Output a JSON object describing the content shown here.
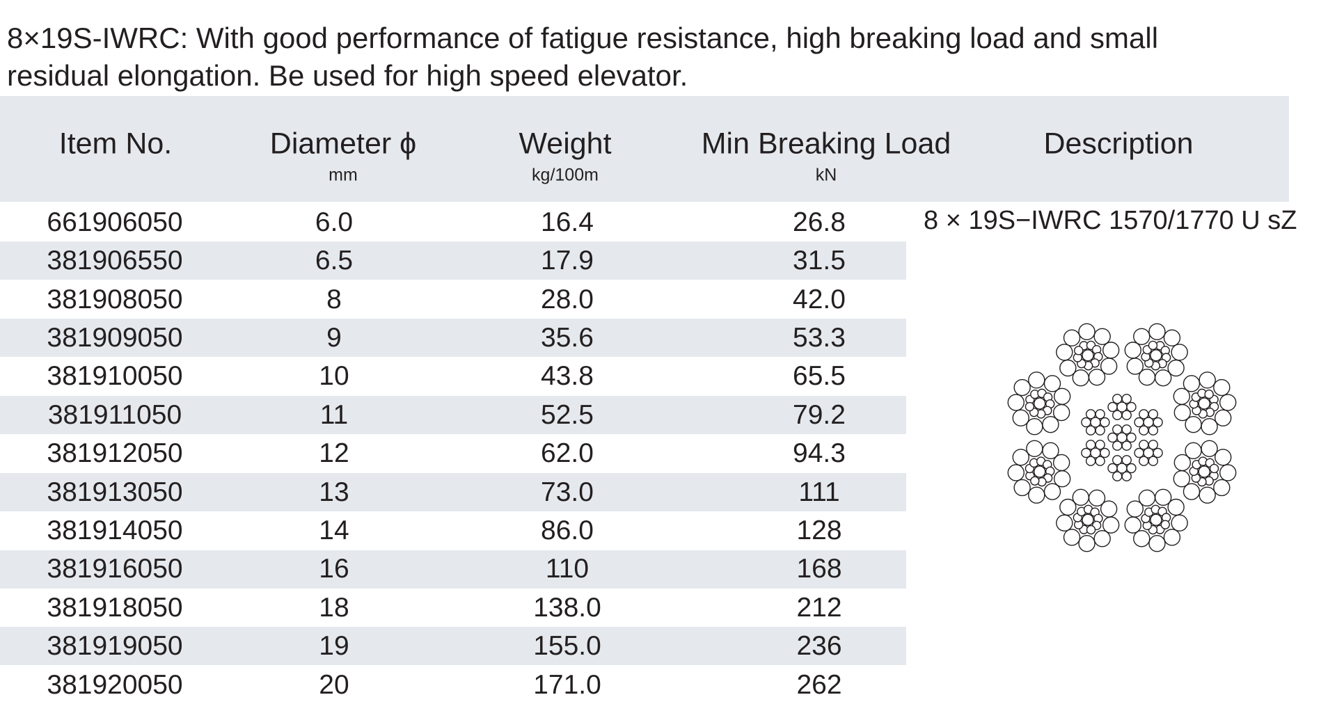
{
  "intro": [
    "8×19S-IWRC:  With good performance of fatigue resistance, high breaking load and small",
    "residual elongation. Be used for high speed elevator."
  ],
  "table": {
    "headers": [
      {
        "label": "Item No."
      },
      {
        "label": "Diameter ϕ",
        "unit": "mm"
      },
      {
        "label": "Weight",
        "unit": "kg/100m"
      },
      {
        "label": "Min Breaking Load",
        "unit": "kN"
      },
      {
        "label": "Description"
      }
    ],
    "rows": [
      [
        "661906050",
        "6.0",
        "16.4",
        "26.8"
      ],
      [
        "381906550",
        "6.5",
        "17.9",
        "31.5"
      ],
      [
        "381908050",
        "8",
        "28.0",
        "42.0"
      ],
      [
        "381909050",
        "9",
        "35.6",
        "53.3"
      ],
      [
        "381910050",
        "10",
        "43.8",
        "65.5"
      ],
      [
        "381911050",
        "11",
        "52.5",
        "79.2"
      ],
      [
        "381912050",
        "12",
        "62.0",
        "94.3"
      ],
      [
        "381913050",
        "13",
        "73.0",
        "111"
      ],
      [
        "381914050",
        "14",
        "86.0",
        "128"
      ],
      [
        "381916050",
        "16",
        "110",
        "168"
      ],
      [
        "381918050",
        "18",
        "138.0",
        "212"
      ],
      [
        "381919050",
        "19",
        "155.0",
        "236"
      ],
      [
        "381920050",
        "20",
        "171.0",
        "262"
      ]
    ],
    "description": "8 × 19S−IWRC 1570/1770 U sZ"
  }
}
